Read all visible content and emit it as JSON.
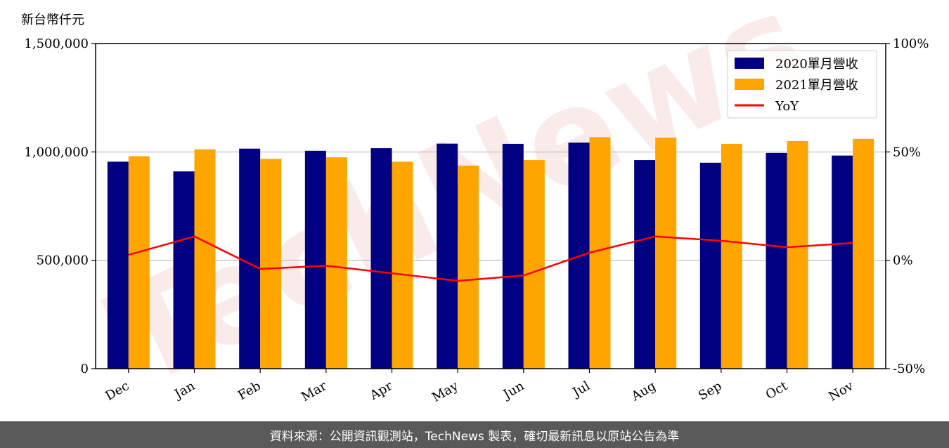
{
  "unit_label": "新台幣仟元",
  "watermark": "TechNews",
  "footer": "資料來源：公開資訊觀測站，TechNews 製表，確切最新訊息以原站公告為準",
  "colors": {
    "bar2020": "#000080",
    "bar2021": "#ffa500",
    "yoy": "#ff0000"
  },
  "chart_data": {
    "type": "bar",
    "categories": [
      "Dec",
      "Jan",
      "Feb",
      "Mar",
      "Apr",
      "May",
      "Jun",
      "Jul",
      "Aug",
      "Sep",
      "Oct",
      "Nov"
    ],
    "series": [
      {
        "name": "2020單月營收",
        "axis": "left",
        "values": [
          955000,
          910000,
          1015000,
          1005000,
          1017000,
          1038000,
          1037000,
          1043000,
          962000,
          950000,
          995000,
          983000
        ]
      },
      {
        "name": "2021單月營收",
        "axis": "left",
        "values": [
          980000,
          1012000,
          968000,
          975000,
          955000,
          937000,
          962000,
          1068000,
          1066000,
          1037000,
          1050000,
          1060000
        ]
      },
      {
        "name": "YoY",
        "type": "line",
        "axis": "right",
        "values": [
          2.5,
          11,
          -4,
          -2.5,
          -6,
          -9.5,
          -7,
          3.5,
          11,
          9,
          6,
          8
        ]
      }
    ],
    "y_left": {
      "lim": [
        0,
        1500000
      ],
      "ticks": [
        "0",
        "500,000",
        "1,000,000",
        "1,500,000"
      ],
      "tick_values": [
        0,
        500000,
        1000000,
        1500000
      ]
    },
    "y_right": {
      "lim": [
        -50,
        100
      ],
      "ticks": [
        "-50%",
        "0%",
        "50%",
        "100%"
      ],
      "tick_values": [
        -50,
        0,
        50,
        100
      ]
    },
    "grid": "horizontal",
    "legend": "top-right"
  }
}
